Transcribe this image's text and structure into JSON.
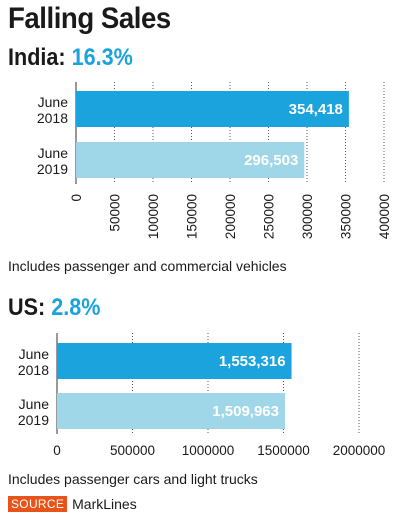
{
  "header": {
    "title": "Falling Sales"
  },
  "chart_data": [
    {
      "type": "bar",
      "orientation": "horizontal",
      "title_region": "India:",
      "title_value": "16.3%",
      "categories": [
        [
          "June",
          "2018"
        ],
        [
          "June",
          "2019"
        ]
      ],
      "values": [
        354418,
        296503
      ],
      "value_labels": [
        "354,418",
        "296,503"
      ],
      "bar_colors": [
        "#1aa3dc",
        "#9fd7e8"
      ],
      "xlim": [
        0,
        400000
      ],
      "ticks": [
        0,
        50000,
        100000,
        150000,
        200000,
        250000,
        300000,
        350000,
        400000
      ],
      "tick_labels": [
        "0",
        "50000",
        "100000",
        "150000",
        "200000",
        "250000",
        "300000",
        "350000",
        "400000"
      ],
      "tick_rotation": "vertical",
      "grid": "vertical dotted",
      "note": "Includes passenger and commercial vehicles"
    },
    {
      "type": "bar",
      "orientation": "horizontal",
      "title_region": "US:",
      "title_value": "2.8%",
      "categories": [
        [
          "June",
          "2018"
        ],
        [
          "June",
          "2019"
        ]
      ],
      "values": [
        1553316,
        1509963
      ],
      "value_labels": [
        "1,553,316",
        "1,509,963"
      ],
      "bar_colors": [
        "#1aa3dc",
        "#9fd7e8"
      ],
      "xlim": [
        0,
        2000000
      ],
      "ticks": [
        0,
        500000,
        1000000,
        1500000,
        2000000
      ],
      "tick_labels": [
        "0",
        "500000",
        "1000000",
        "1500000",
        "2000000"
      ],
      "tick_rotation": "horizontal",
      "grid": "vertical dotted",
      "note": "Includes passenger cars and light trucks"
    }
  ],
  "footer": {
    "source_badge": "SOURCE",
    "source_name": "MarkLines"
  }
}
